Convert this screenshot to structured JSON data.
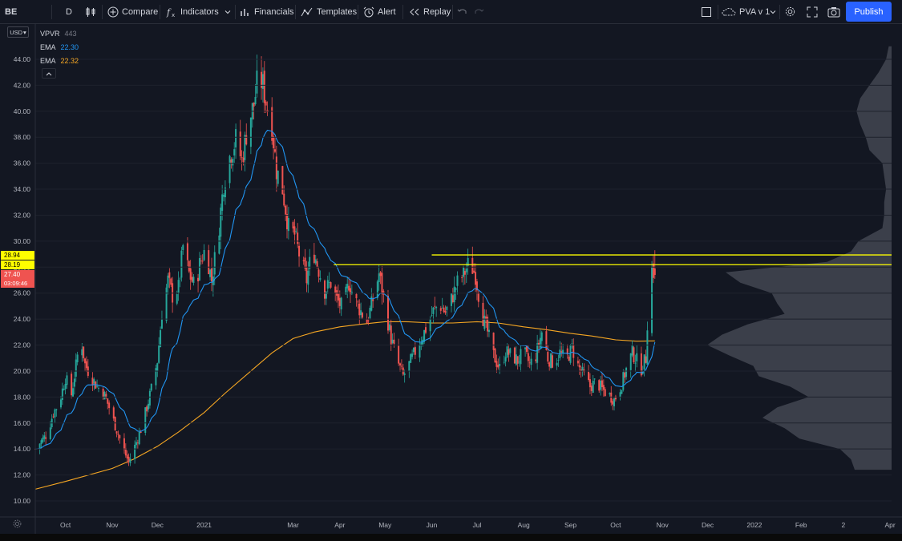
{
  "toolbar": {
    "symbol": "BE",
    "interval": "D",
    "compare_label": "Compare",
    "indicators_label": "Indicators",
    "financials_label": "Financials",
    "templates_label": "Templates",
    "alert_label": "Alert",
    "replay_label": "Replay",
    "layout_name": "PVA v 1",
    "publish_label": "Publish",
    "icons": [
      "candles-icon",
      "plus-circle-icon",
      "fx-icon",
      "chevron-down-icon",
      "financials-icon",
      "templates-icon",
      "alarm-clock-icon",
      "replay-icon",
      "undo-icon",
      "redo-icon",
      "square-icon",
      "cloud-icon",
      "gear-icon",
      "fullscreen-icon",
      "camera-icon"
    ]
  },
  "currency": "USD",
  "legend": {
    "vpvr": {
      "label": "VPVR",
      "value": "443"
    },
    "ema1": {
      "label": "EMA",
      "value": "22.30",
      "color": "#2196f3"
    },
    "ema2": {
      "label": "EMA",
      "value": "22.32",
      "color": "#f5a623"
    }
  },
  "price_badges": {
    "upper": {
      "value": "28.94",
      "color": "#ffff00"
    },
    "lower": {
      "value": "28.19",
      "color": "#ffff00"
    },
    "last": {
      "value": "27.40",
      "countdown": "03:09:46",
      "color": "#ef5350"
    }
  },
  "colors": {
    "up": "#26a69a",
    "down": "#ef5350",
    "ema_fast": "#2196f3",
    "ema_slow": "#f5a623",
    "hline": "#ffff00",
    "vp": "#5d606b"
  },
  "chart_data": {
    "type": "candlestick",
    "symbol": "BE",
    "interval": "D",
    "ylim": [
      9.2,
      46.5
    ],
    "y_ticks": [
      "10.00",
      "12.00",
      "14.00",
      "16.00",
      "18.00",
      "20.00",
      "22.00",
      "24.00",
      "26.00",
      "28.00",
      "30.00",
      "32.00",
      "34.00",
      "36.00",
      "38.00",
      "40.00",
      "42.00",
      "44.00"
    ],
    "x_ticks": [
      {
        "label": "Oct",
        "t": "2020-10-01"
      },
      {
        "label": "Nov",
        "t": "2020-11-01"
      },
      {
        "label": "Dec",
        "t": "2020-12-01"
      },
      {
        "label": "2021",
        "t": "2021-01-01"
      },
      {
        "label": "Mar",
        "t": "2021-03-01"
      },
      {
        "label": "Apr",
        "t": "2021-04-01"
      },
      {
        "label": "May",
        "t": "2021-05-01"
      },
      {
        "label": "Jun",
        "t": "2021-06-01"
      },
      {
        "label": "Jul",
        "t": "2021-07-01"
      },
      {
        "label": "Aug",
        "t": "2021-08-01"
      },
      {
        "label": "Sep",
        "t": "2021-09-01"
      },
      {
        "label": "Oct",
        "t": "2021-10-01"
      },
      {
        "label": "Nov",
        "t": "2021-11-01"
      },
      {
        "label": "Dec",
        "t": "2021-12-01"
      },
      {
        "label": "2022",
        "t": "2022-01-01"
      },
      {
        "label": "Feb",
        "t": "2022-02-01"
      },
      {
        "label": "2",
        "t": "2022-03-01"
      },
      {
        "label": "Apr",
        "t": "2022-04-01"
      }
    ],
    "x_range": [
      "2020-09-11",
      "2022-04-02"
    ],
    "close_series": [
      [
        "2020-09-11",
        14.0
      ],
      [
        "2020-09-15",
        14.6
      ],
      [
        "2020-09-19",
        15.2
      ],
      [
        "2020-09-23",
        16.8
      ],
      [
        "2020-09-27",
        17.6
      ],
      [
        "2020-10-01",
        19.5
      ],
      [
        "2020-10-05",
        18.2
      ],
      [
        "2020-10-08",
        20.4
      ],
      [
        "2020-10-11",
        22.8
      ],
      [
        "2020-10-14",
        20.5
      ],
      [
        "2020-10-18",
        19.6
      ],
      [
        "2020-10-22",
        18.8
      ],
      [
        "2020-10-26",
        18.4
      ],
      [
        "2020-10-30",
        17.2
      ],
      [
        "2020-11-03",
        15.8
      ],
      [
        "2020-11-06",
        14.8
      ],
      [
        "2020-11-09",
        13.8
      ],
      [
        "2020-11-12",
        13.0
      ],
      [
        "2020-11-16",
        14.2
      ],
      [
        "2020-11-20",
        15.5
      ],
      [
        "2020-11-24",
        17.2
      ],
      [
        "2020-11-27",
        18.6
      ],
      [
        "2020-12-01",
        20.8
      ],
      [
        "2020-12-04",
        24.5
      ],
      [
        "2020-12-08",
        27.0
      ],
      [
        "2020-12-11",
        25.8
      ],
      [
        "2020-12-15",
        26.4
      ],
      [
        "2020-12-18",
        29.6
      ],
      [
        "2020-12-22",
        27.5
      ],
      [
        "2020-12-26",
        26.4
      ],
      [
        "2020-12-29",
        28.2
      ],
      [
        "2021-01-02",
        29.5
      ],
      [
        "2021-01-06",
        27.0
      ],
      [
        "2021-01-10",
        30.2
      ],
      [
        "2021-01-14",
        34.5
      ],
      [
        "2021-01-18",
        36.5
      ],
      [
        "2021-01-22",
        37.8
      ],
      [
        "2021-01-26",
        36.2
      ],
      [
        "2021-01-30",
        39.0
      ],
      [
        "2021-02-03",
        40.5
      ],
      [
        "2021-02-06",
        42.8
      ],
      [
        "2021-02-09",
        42.0
      ],
      [
        "2021-02-12",
        40.2
      ],
      [
        "2021-02-15",
        38.8
      ],
      [
        "2021-02-18",
        35.5
      ],
      [
        "2021-02-22",
        34.0
      ],
      [
        "2021-02-26",
        31.0
      ],
      [
        "2021-03-02",
        30.5
      ],
      [
        "2021-03-06",
        28.5
      ],
      [
        "2021-03-10",
        27.0
      ],
      [
        "2021-03-14",
        29.5
      ],
      [
        "2021-03-18",
        27.8
      ],
      [
        "2021-03-22",
        26.2
      ],
      [
        "2021-03-26",
        26.8
      ],
      [
        "2021-03-30",
        25.5
      ],
      [
        "2021-04-03",
        24.8
      ],
      [
        "2021-04-07",
        26.8
      ],
      [
        "2021-04-11",
        25.5
      ],
      [
        "2021-04-15",
        24.6
      ],
      [
        "2021-04-19",
        23.8
      ],
      [
        "2021-04-23",
        25.5
      ],
      [
        "2021-04-27",
        27.5
      ],
      [
        "2021-05-01",
        25.0
      ],
      [
        "2021-05-05",
        22.5
      ],
      [
        "2021-05-09",
        20.8
      ],
      [
        "2021-05-13",
        19.6
      ],
      [
        "2021-05-17",
        20.5
      ],
      [
        "2021-05-21",
        21.5
      ],
      [
        "2021-05-25",
        22.5
      ],
      [
        "2021-05-29",
        23.5
      ],
      [
        "2021-06-02",
        24.6
      ],
      [
        "2021-06-06",
        25.2
      ],
      [
        "2021-06-10",
        24.5
      ],
      [
        "2021-06-14",
        25.5
      ],
      [
        "2021-06-18",
        26.8
      ],
      [
        "2021-06-22",
        27.4
      ],
      [
        "2021-06-26",
        28.4
      ],
      [
        "2021-06-30",
        27.4
      ],
      [
        "2021-07-04",
        24.5
      ],
      [
        "2021-07-08",
        23.0
      ],
      [
        "2021-07-12",
        21.2
      ],
      [
        "2021-07-16",
        20.2
      ],
      [
        "2021-07-20",
        21.5
      ],
      [
        "2021-07-24",
        21.2
      ],
      [
        "2021-07-28",
        20.8
      ],
      [
        "2021-08-01",
        21.5
      ],
      [
        "2021-08-05",
        20.5
      ],
      [
        "2021-08-09",
        21.2
      ],
      [
        "2021-08-13",
        23.0
      ],
      [
        "2021-08-17",
        21.0
      ],
      [
        "2021-08-21",
        20.6
      ],
      [
        "2021-08-25",
        21.4
      ],
      [
        "2021-08-29",
        20.8
      ],
      [
        "2021-09-02",
        21.8
      ],
      [
        "2021-09-06",
        20.4
      ],
      [
        "2021-09-10",
        19.6
      ],
      [
        "2021-09-14",
        18.8
      ],
      [
        "2021-09-18",
        19.2
      ],
      [
        "2021-09-22",
        18.6
      ],
      [
        "2021-09-26",
        18.2
      ],
      [
        "2021-09-30",
        17.8
      ],
      [
        "2021-10-03",
        18.4
      ],
      [
        "2021-10-06",
        19.4
      ],
      [
        "2021-10-09",
        20.5
      ],
      [
        "2021-10-12",
        21.4
      ],
      [
        "2021-10-15",
        20.8
      ],
      [
        "2021-10-18",
        20.2
      ],
      [
        "2021-10-21",
        21.0
      ],
      [
        "2021-10-23",
        26.5
      ],
      [
        "2021-10-25",
        27.9
      ],
      [
        "2021-10-27",
        27.4
      ]
    ],
    "ema_slow": [
      [
        "2020-09-11",
        10.9
      ],
      [
        "2020-10-01",
        11.5
      ],
      [
        "2020-11-01",
        12.5
      ],
      [
        "2020-11-15",
        13.2
      ],
      [
        "2020-12-01",
        14.2
      ],
      [
        "2020-12-15",
        15.3
      ],
      [
        "2021-01-01",
        16.8
      ],
      [
        "2021-01-15",
        18.3
      ],
      [
        "2021-02-01",
        20.0
      ],
      [
        "2021-02-15",
        21.4
      ],
      [
        "2021-03-01",
        22.5
      ],
      [
        "2021-03-15",
        23.0
      ],
      [
        "2021-04-01",
        23.4
      ],
      [
        "2021-04-15",
        23.6
      ],
      [
        "2021-05-01",
        23.8
      ],
      [
        "2021-05-15",
        23.8
      ],
      [
        "2021-06-01",
        23.7
      ],
      [
        "2021-06-15",
        23.7
      ],
      [
        "2021-07-01",
        23.8
      ],
      [
        "2021-07-15",
        23.7
      ],
      [
        "2021-08-01",
        23.4
      ],
      [
        "2021-08-15",
        23.2
      ],
      [
        "2021-09-01",
        22.9
      ],
      [
        "2021-09-15",
        22.7
      ],
      [
        "2021-10-01",
        22.4
      ],
      [
        "2021-10-15",
        22.3
      ],
      [
        "2021-10-27",
        22.32
      ]
    ],
    "hlines": [
      {
        "price": 28.94,
        "from": "2021-06-01",
        "to": "2022-04-02"
      },
      {
        "price": 28.19,
        "from": "2021-03-28",
        "to": "2022-04-02"
      }
    ],
    "volume_profile": [
      [
        12.4,
        0.2
      ],
      [
        13.2,
        0.22
      ],
      [
        14.0,
        0.28
      ],
      [
        14.8,
        0.5
      ],
      [
        15.6,
        0.58
      ],
      [
        16.4,
        0.7
      ],
      [
        17.2,
        0.62
      ],
      [
        18.0,
        0.45
      ],
      [
        18.8,
        0.55
      ],
      [
        19.6,
        0.72
      ],
      [
        20.4,
        0.75
      ],
      [
        21.2,
        0.88
      ],
      [
        22.0,
        1.0
      ],
      [
        22.8,
        0.92
      ],
      [
        23.6,
        0.78
      ],
      [
        24.4,
        0.58
      ],
      [
        25.2,
        0.62
      ],
      [
        26.0,
        0.65
      ],
      [
        26.8,
        0.82
      ],
      [
        27.6,
        0.9
      ],
      [
        28.4,
        0.35
      ],
      [
        29.2,
        0.22
      ],
      [
        30.0,
        0.18
      ],
      [
        31.0,
        0.05
      ],
      [
        32.0,
        0.04
      ],
      [
        33.0,
        0.04
      ],
      [
        34.0,
        0.03
      ],
      [
        35.0,
        0.04
      ],
      [
        36.0,
        0.05
      ],
      [
        37.0,
        0.12
      ],
      [
        38.0,
        0.14
      ],
      [
        39.0,
        0.17
      ],
      [
        40.0,
        0.19
      ],
      [
        41.0,
        0.17
      ],
      [
        42.0,
        0.12
      ],
      [
        43.0,
        0.07
      ],
      [
        44.0,
        0.03
      ],
      [
        45.0,
        0.015
      ]
    ]
  }
}
